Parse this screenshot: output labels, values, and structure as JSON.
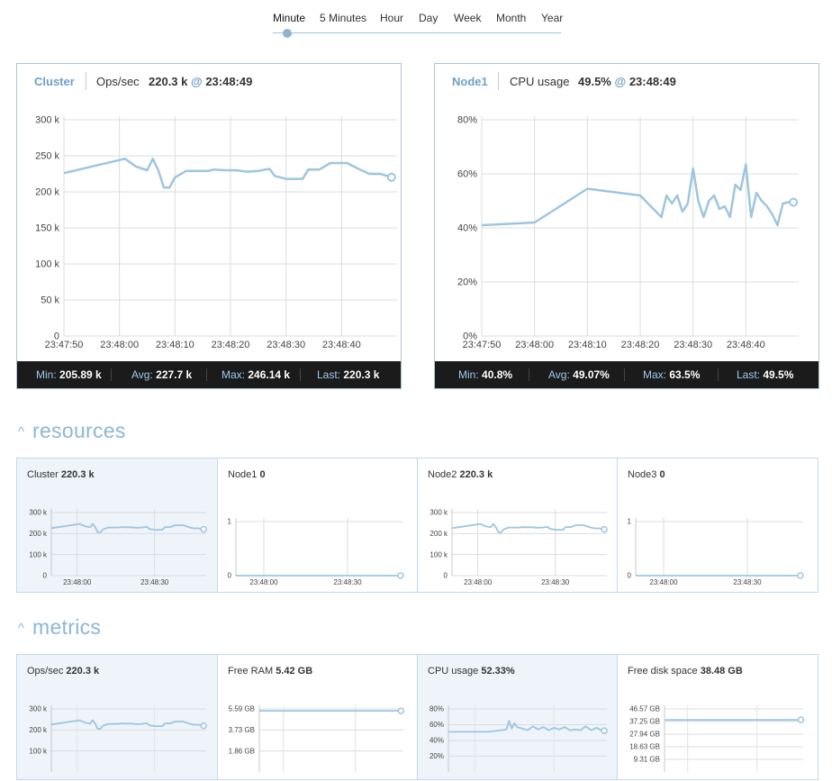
{
  "range_tabs": [
    "Minute",
    "5 Minutes",
    "Hour",
    "Day",
    "Week",
    "Month",
    "Year"
  ],
  "range_selected": "Minute",
  "panels": [
    {
      "name": "Cluster",
      "metric": "Ops/sec",
      "current": "220.3 k",
      "at_symbol": "@",
      "time": "23:48:49",
      "stats": {
        "min_label": "Min:",
        "min": "205.89 k",
        "avg_label": "Avg:",
        "avg": "227.7 k",
        "max_label": "Max:",
        "max": "246.14 k",
        "last_label": "Last:",
        "last": "220.3 k"
      }
    },
    {
      "name": "Node1",
      "metric": "CPU usage",
      "current": "49.5%",
      "at_symbol": "@",
      "time": "23:48:49",
      "stats": {
        "min_label": "Min:",
        "min": "40.8%",
        "avg_label": "Avg:",
        "avg": "49.07%",
        "max_label": "Max:",
        "max": "63.5%",
        "last_label": "Last:",
        "last": "49.5%"
      }
    }
  ],
  "sections": {
    "resources": {
      "title": "resources",
      "cards": [
        {
          "name": "Cluster",
          "value": "220.3 k"
        },
        {
          "name": "Node1",
          "value": "0"
        },
        {
          "name": "Node2",
          "value": "220.3 k"
        },
        {
          "name": "Node3",
          "value": "0"
        }
      ]
    },
    "metrics": {
      "title": "metrics",
      "cards": [
        {
          "name": "Ops/sec",
          "value": "220.3 k"
        },
        {
          "name": "Free RAM",
          "value": "5.42 GB"
        },
        {
          "name": "CPU usage",
          "value": "52.33%"
        },
        {
          "name": "Free disk space",
          "value": "38.48 GB"
        }
      ]
    }
  },
  "colors": {
    "line": "#9ec5e0",
    "accent": "#6fa0c9",
    "stats_bar": "#1b1b1b",
    "card_shaded": "#eef4fa"
  },
  "chart_data": [
    {
      "type": "line",
      "x_ticks": [
        "23:47:50",
        "23:48:00",
        "23:48:10",
        "23:48:20",
        "23:48:30",
        "23:48:40"
      ],
      "y_ticks": [
        "300 k",
        "250 k",
        "200 k",
        "150 k",
        "100 k",
        "50 k",
        "0"
      ],
      "ylim": [
        0,
        300000
      ],
      "x_seconds": [
        0,
        11,
        13,
        15,
        16,
        17,
        18,
        19,
        20,
        22,
        24,
        26,
        27,
        29,
        31,
        33,
        35,
        37,
        38,
        40,
        42,
        43,
        44,
        46,
        48,
        50,
        51,
        53,
        55,
        57,
        59
      ],
      "y": [
        226000,
        246000,
        235000,
        230000,
        246000,
        230000,
        205900,
        205900,
        220000,
        229000,
        229000,
        229000,
        231000,
        230000,
        230000,
        228000,
        229000,
        232000,
        222000,
        218000,
        218000,
        218000,
        231000,
        231000,
        240000,
        240000,
        240000,
        232000,
        225000,
        225000,
        220300
      ]
    },
    {
      "type": "line",
      "x_ticks": [
        "23:47:50",
        "23:48:00",
        "23:48:10",
        "23:48:20",
        "23:48:30",
        "23:48:40"
      ],
      "y_ticks": [
        "80%",
        "60%",
        "40%",
        "20%",
        "0%"
      ],
      "ylim": [
        0,
        80
      ],
      "x_seconds": [
        0,
        10,
        20,
        30,
        34,
        35,
        36,
        37,
        38,
        39,
        40,
        41,
        42,
        43,
        44,
        45,
        46,
        47,
        48,
        49,
        50,
        51,
        52,
        53,
        54,
        55,
        56,
        57,
        58,
        59
      ],
      "y": [
        41,
        42,
        54.5,
        52,
        44,
        52,
        49,
        52,
        46,
        49,
        62,
        50,
        44,
        50,
        52,
        47,
        48,
        44,
        56,
        54,
        63.5,
        44,
        53,
        50,
        48,
        45,
        41,
        49,
        49.5,
        49.5
      ]
    },
    {
      "type": "line",
      "x_ticks": [
        "23:48:00",
        "23:48:30"
      ],
      "y_ticks": [
        "300 k",
        "200 k",
        "100 k",
        "0"
      ],
      "ylim": [
        0,
        300000
      ],
      "x_seconds": [
        0,
        11,
        13,
        15,
        16,
        17,
        18,
        19,
        20,
        22,
        24,
        26,
        27,
        29,
        31,
        33,
        35,
        37,
        38,
        40,
        42,
        43,
        44,
        46,
        48,
        50,
        51,
        53,
        55,
        57,
        59
      ],
      "y": [
        226000,
        246000,
        235000,
        230000,
        246000,
        230000,
        205900,
        205900,
        220000,
        229000,
        229000,
        229000,
        231000,
        230000,
        230000,
        228000,
        229000,
        232000,
        222000,
        218000,
        218000,
        218000,
        231000,
        231000,
        240000,
        240000,
        240000,
        232000,
        225000,
        225000,
        220300
      ]
    },
    {
      "type": "line",
      "x_ticks": [
        "23:48:00",
        "23:48:30"
      ],
      "y_ticks": [
        "1",
        "0"
      ],
      "ylim": [
        0,
        1
      ],
      "x_seconds": [
        0,
        59
      ],
      "y": [
        0,
        0
      ]
    },
    {
      "type": "line",
      "x_ticks": [
        "23:48:00",
        "23:48:30"
      ],
      "y_ticks": [
        "300 k",
        "200 k",
        "100 k",
        "0"
      ],
      "ylim": [
        0,
        300000
      ],
      "x_seconds": [
        0,
        11,
        13,
        15,
        16,
        17,
        18,
        19,
        20,
        22,
        24,
        26,
        27,
        29,
        31,
        33,
        35,
        37,
        38,
        40,
        42,
        43,
        44,
        46,
        48,
        50,
        51,
        53,
        55,
        57,
        59
      ],
      "y": [
        226000,
        246000,
        235000,
        230000,
        246000,
        230000,
        205900,
        205900,
        220000,
        229000,
        229000,
        229000,
        231000,
        230000,
        230000,
        228000,
        229000,
        232000,
        222000,
        218000,
        218000,
        218000,
        231000,
        231000,
        240000,
        240000,
        240000,
        232000,
        225000,
        225000,
        220300
      ]
    },
    {
      "type": "line",
      "x_ticks": [
        "23:48:00",
        "23:48:30"
      ],
      "y_ticks": [
        "1",
        "0"
      ],
      "ylim": [
        0,
        1
      ],
      "x_seconds": [
        0,
        59
      ],
      "y": [
        0,
        0
      ]
    },
    {
      "type": "line",
      "x_ticks": [],
      "y_ticks": [
        "300 k",
        "200 k",
        "100 k"
      ],
      "ylim": [
        0,
        300000
      ],
      "x_seconds": [
        0,
        11,
        13,
        15,
        16,
        17,
        18,
        19,
        20,
        22,
        24,
        26,
        27,
        29,
        31,
        33,
        35,
        37,
        38,
        40,
        42,
        43,
        44,
        46,
        48,
        50,
        51,
        53,
        55,
        57,
        59
      ],
      "y": [
        226000,
        246000,
        235000,
        230000,
        246000,
        230000,
        205900,
        205900,
        220000,
        229000,
        229000,
        229000,
        231000,
        230000,
        230000,
        228000,
        229000,
        232000,
        222000,
        218000,
        218000,
        218000,
        231000,
        231000,
        240000,
        240000,
        240000,
        232000,
        225000,
        225000,
        220300
      ]
    },
    {
      "type": "line",
      "x_ticks": [],
      "y_ticks": [
        "5.59 GB",
        "3.73 GB",
        "1.86 GB"
      ],
      "ylim": [
        0,
        5.59
      ],
      "x_seconds": [
        0,
        59
      ],
      "y": [
        5.42,
        5.42
      ]
    },
    {
      "type": "line",
      "x_ticks": [],
      "y_ticks": [
        "80%",
        "60%",
        "40%",
        "20%"
      ],
      "ylim": [
        0,
        80
      ],
      "x_seconds": [
        0,
        15,
        20,
        22,
        23,
        24,
        25,
        26,
        28,
        30,
        32,
        34,
        36,
        38,
        40,
        42,
        44,
        46,
        48,
        50,
        52,
        54,
        56,
        58,
        59
      ],
      "y": [
        51,
        51,
        53,
        54,
        65,
        55,
        62,
        57,
        55,
        53,
        58,
        54,
        57,
        53,
        56,
        54,
        57,
        53,
        54,
        53,
        58,
        53,
        56,
        53,
        52.33
      ]
    },
    {
      "type": "line",
      "x_ticks": [],
      "y_ticks": [
        "46.57 GB",
        "37.25 GB",
        "27.94 GB",
        "18.63 GB",
        "9.31 GB"
      ],
      "ylim": [
        0,
        46.57
      ],
      "x_seconds": [
        0,
        59
      ],
      "y": [
        38.48,
        38.48
      ]
    }
  ]
}
